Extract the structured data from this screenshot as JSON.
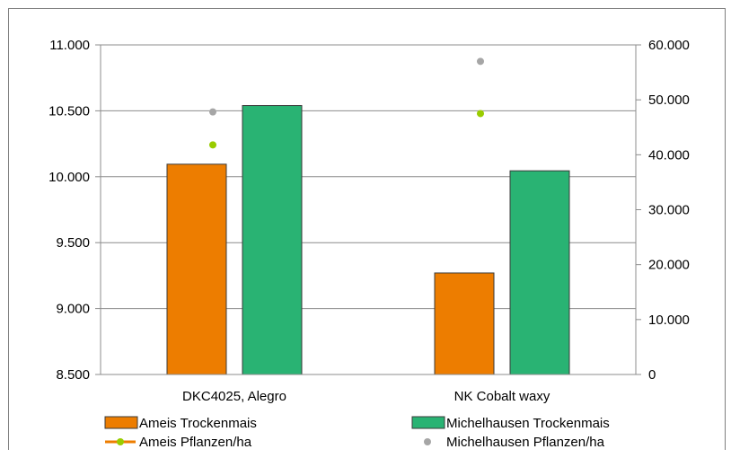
{
  "chart_data": {
    "type": "bar",
    "categories": [
      "DKC4025, Alegro",
      "NK Cobalt waxy"
    ],
    "series": [
      {
        "name": "Ameis Trockenmais",
        "kind": "bar",
        "axis": "left",
        "color": "#ed7d00",
        "values": [
          10095,
          9270
        ]
      },
      {
        "name": "Michelhausen Trockenmais",
        "kind": "bar",
        "axis": "left",
        "color": "#29b373",
        "values": [
          10540,
          10045
        ]
      },
      {
        "name": "Ameis Pflanzen/ha",
        "kind": "point",
        "axis": "right",
        "color": "#99cc00",
        "line_color": "#ed7d00",
        "values": [
          41800,
          47500
        ]
      },
      {
        "name": "Michelhausen Pflanzen/ha",
        "kind": "point",
        "axis": "right",
        "color": "#a6a6a6",
        "values": [
          47800,
          57000
        ]
      }
    ],
    "y_left": {
      "min": 8500,
      "max": 11000,
      "step": 500,
      "tick_labels": [
        "8.500",
        "9.000",
        "9.500",
        "10.000",
        "10.500",
        "11.000"
      ]
    },
    "y_right": {
      "min": 0,
      "max": 60000,
      "step": 10000,
      "tick_labels": [
        "0",
        "10.000",
        "20.000",
        "30.000",
        "40.000",
        "50.000",
        "60.000"
      ]
    },
    "grid": true,
    "legend_position": "bottom",
    "title": "",
    "xlabel": "",
    "ylabel": ""
  }
}
